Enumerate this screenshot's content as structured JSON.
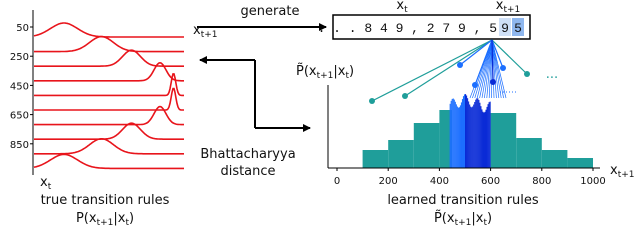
{
  "left_panel": {
    "row_labels": [
      "50",
      "250",
      "450",
      "650",
      "850"
    ],
    "axis_label": [
      "x",
      "t+1"
    ],
    "x_label": [
      "x",
      "t"
    ],
    "caption": "true transition rules",
    "formula": [
      "P(x",
      "t+1",
      "|x",
      "t",
      ")"
    ]
  },
  "generate_arrow": {
    "label": "generate"
  },
  "sequence": {
    "prefix": ". . . 8 4 9 , 2 7 9 , 5",
    "highlight": [
      "9",
      "5"
    ],
    "xt_label": [
      "x",
      "t"
    ],
    "xt1_label": [
      "x",
      "t+1"
    ]
  },
  "distance": {
    "label": [
      "Bhattacharyya",
      "distance"
    ]
  },
  "right_panel": {
    "y_title": [
      "P̃(x",
      "t+1",
      "|x",
      "t",
      ")"
    ],
    "x_ticks": [
      "0",
      "200",
      "400",
      "600",
      "800",
      "1000"
    ],
    "axis_label": [
      "x",
      "t+1"
    ],
    "ellipsis": "...",
    "caption": "learned transition rules",
    "formula": [
      "P̃(x",
      "t+1",
      "|x",
      "t",
      ")"
    ]
  }
}
